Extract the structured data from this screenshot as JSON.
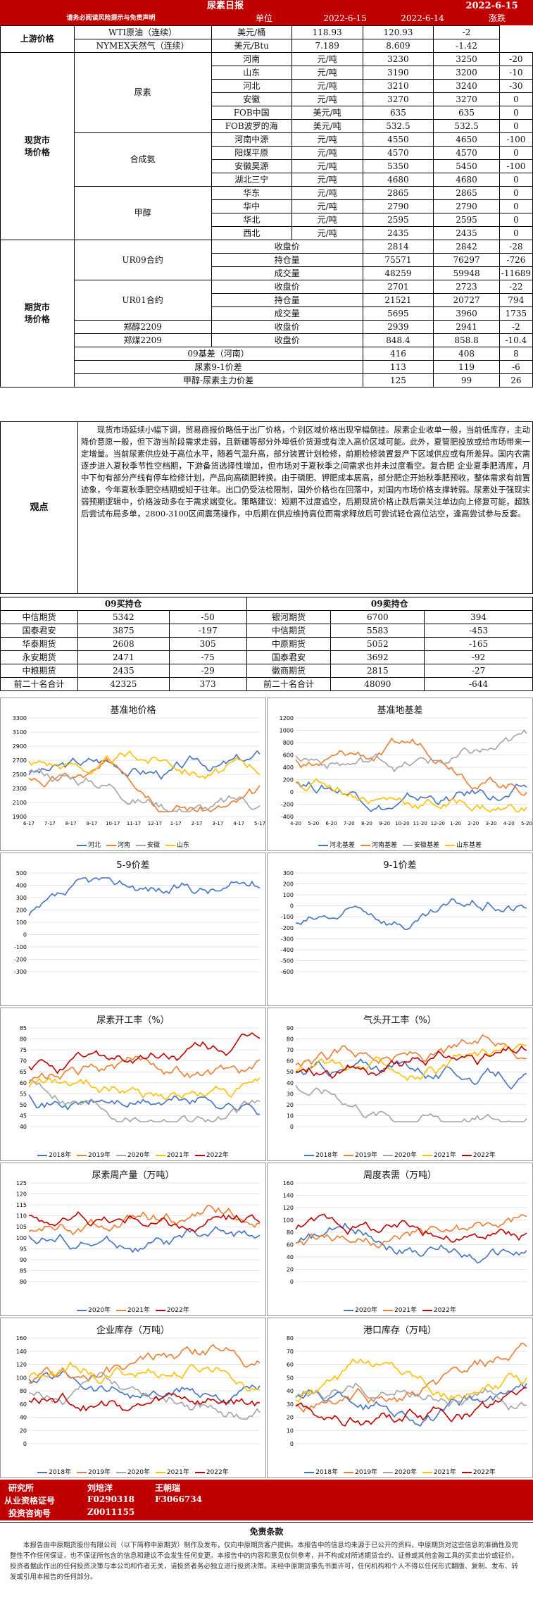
{
  "header": {
    "title": "尿素日报",
    "date": "2022-6-15",
    "subtitle": "请务必阅读风险提示与免责声明",
    "col_unit": "单位",
    "col_d1": "2022-6-15",
    "col_d2": "2022-6-14",
    "col_chg": "涨跌"
  },
  "upstream": {
    "label": "上游价格",
    "rows": [
      {
        "name": "WTI原油（连续）",
        "unit": "美元/桶",
        "v1": "118.93",
        "v2": "120.93",
        "chg": "-2"
      },
      {
        "name": "NYMEX天然气（连续）",
        "unit": "美元/Btu",
        "v1": "7.189",
        "v2": "8.609",
        "chg": "-1.42"
      }
    ]
  },
  "spot": {
    "label": "现货市场价格",
    "groups": [
      {
        "name": "尿素",
        "rows": [
          {
            "name": "河南",
            "unit": "元/吨",
            "v1": "3230",
            "v2": "3250",
            "chg": "-20"
          },
          {
            "name": "山东",
            "unit": "元/吨",
            "v1": "3190",
            "v2": "3200",
            "chg": "-10"
          },
          {
            "name": "河北",
            "unit": "元/吨",
            "v1": "3210",
            "v2": "3240",
            "chg": "-30"
          },
          {
            "name": "安徽",
            "unit": "元/吨",
            "v1": "3270",
            "v2": "3270",
            "chg": "0"
          },
          {
            "name": "FOB中国",
            "unit": "美元/吨",
            "v1": "635",
            "v2": "635",
            "chg": "0"
          },
          {
            "name": "FOB波罗的海",
            "unit": "美元/吨",
            "v1": "532.5",
            "v2": "532.5",
            "chg": "0"
          }
        ]
      },
      {
        "name": "合成氨",
        "rows": [
          {
            "name": "河南中源",
            "unit": "元/吨",
            "v1": "4550",
            "v2": "4650",
            "chg": "-100"
          },
          {
            "name": "阳煤平原",
            "unit": "元/吨",
            "v1": "4570",
            "v2": "4570",
            "chg": "0"
          },
          {
            "name": "安徽昊源",
            "unit": "元/吨",
            "v1": "5350",
            "v2": "5450",
            "chg": "-100"
          },
          {
            "name": "湖北三宁",
            "unit": "元/吨",
            "v1": "4680",
            "v2": "4680",
            "chg": "0"
          }
        ]
      },
      {
        "name": "甲醇",
        "rows": [
          {
            "name": "华东",
            "unit": "元/吨",
            "v1": "2865",
            "v2": "2865",
            "chg": "0"
          },
          {
            "name": "华中",
            "unit": "元/吨",
            "v1": "2790",
            "v2": "2790",
            "chg": "0"
          },
          {
            "name": "华北",
            "unit": "元/吨",
            "v1": "2595",
            "v2": "2595",
            "chg": "0"
          },
          {
            "name": "西北",
            "unit": "元/吨",
            "v1": "2435",
            "v2": "2435",
            "chg": "0"
          }
        ]
      }
    ]
  },
  "futures": {
    "label": "期货市场价格",
    "groups": [
      {
        "name": "UR09合约",
        "rows": [
          {
            "name": "收盘价",
            "v1": "2814",
            "v2": "2842",
            "chg": "-28"
          },
          {
            "name": "持仓量",
            "v1": "75571",
            "v2": "76297",
            "chg": "-726"
          },
          {
            "name": "成交量",
            "v1": "48259",
            "v2": "59948",
            "chg": "-11689"
          }
        ]
      },
      {
        "name": "UR01合约",
        "rows": [
          {
            "name": "收盘价",
            "v1": "2701",
            "v2": "2723",
            "chg": "-22"
          },
          {
            "name": "持仓量",
            "v1": "21521",
            "v2": "20727",
            "chg": "794"
          },
          {
            "name": "成交量",
            "v1": "5695",
            "v2": "3960",
            "chg": "1735"
          }
        ]
      },
      {
        "name": "郑醇2209",
        "rows": [
          {
            "name": "收盘价",
            "v1": "2939",
            "v2": "2941",
            "chg": "-2"
          }
        ]
      },
      {
        "name": "郑煤2209",
        "rows": [
          {
            "name": "收盘价",
            "v1": "848.4",
            "v2": "858.8",
            "chg": "-10.4"
          }
        ]
      }
    ],
    "spreads": [
      {
        "name": "09基差（河南）",
        "v1": "416",
        "v2": "408",
        "chg": "8"
      },
      {
        "name": "尿素9-1价差",
        "v1": "113",
        "v2": "119",
        "chg": "-6"
      },
      {
        "name": "甲醇-尿素主力价差",
        "v1": "125",
        "v2": "99",
        "chg": "26"
      }
    ]
  },
  "view": {
    "label": "观点",
    "text": "现货市场延续小幅下调，贸易商报价略低于出厂价格，个别区域价格出现窄幅倒挂。尿素企业收单一般，当前低库存，主动降价意愿一般，但下游当阶段需求走弱，且新疆等部分外埠低价货源或有流入高价区域可能。此外，夏管肥投放或给市场带来一定增量。当前尿素供应处于高位水平，随着气温升高，部分装置计划检修，前期检修装置复产下区域供应或有所差异。国内农需逐步进入夏秋季节性空档期，下游备货选择性增加，但市场对于夏秋季之间需求也并未过度看空。复合肥 企业夏季肥清库，月中下旬有部分产线有停车检修计划，产品向高磷肥转换。由于磷肥、钾肥成本居高，部分肥企开始秋季肥预收，整体需求有前置迹象，今年夏秋季肥空档期或短于往年。出口仍受法检限制，国外价格也在回落中，对国内市场价格支撑转弱。尿素处于强现实弱预期逻辑中，价格波动多在于需求端变化。策略建议：短期不过度追空，后期现货价格止跌后需关注单边向上修复可能，超跌后尝试布局多单，2800-3100区间震荡操作，中后期在供应维持高位而需求释放后可尝试轻仓高位沽空，逢高尝试参与反套。"
  },
  "positions": {
    "buy_title": "09买持仓",
    "sell_title": "09卖持仓",
    "buy": [
      {
        "name": "中信期货",
        "v": "5342",
        "chg": "-50"
      },
      {
        "name": "国泰君安",
        "v": "3875",
        "chg": "-197"
      },
      {
        "name": "华泰期货",
        "v": "2608",
        "chg": "305"
      },
      {
        "name": "永安期货",
        "v": "2471",
        "chg": "-75"
      },
      {
        "name": "中粮期货",
        "v": "2435",
        "chg": "-29"
      },
      {
        "name": "前二十名合计",
        "v": "42325",
        "chg": "373"
      }
    ],
    "sell": [
      {
        "name": "银河期货",
        "v": "6700",
        "chg": "394"
      },
      {
        "name": "中信期货",
        "v": "5583",
        "chg": "-453"
      },
      {
        "name": "中原期货",
        "v": "5052",
        "chg": "-165"
      },
      {
        "name": "国泰君安",
        "v": "3692",
        "chg": "-92"
      },
      {
        "name": "徽商期货",
        "v": "2815",
        "chg": "-27"
      },
      {
        "name": "前二十名合计",
        "v": "48090",
        "chg": "-644"
      }
    ]
  },
  "chart_data": [
    {
      "type": "line",
      "title": "基准地价格",
      "yticks": [
        "3300",
        "3100",
        "2900",
        "2700",
        "2500",
        "2300",
        "2100",
        "1900"
      ],
      "xticks": [
        "6-17",
        "7-17",
        "8-17",
        "9-17",
        "10-17",
        "11-17",
        "12-17",
        "1-17",
        "2-17",
        "3-17",
        "4-17",
        "5-17"
      ],
      "series": [
        {
          "name": "河北",
          "color": "#4472c4"
        },
        {
          "name": "河南",
          "color": "#ed7d31"
        },
        {
          "name": "安徽",
          "color": "#a5a5a5"
        },
        {
          "name": "山东",
          "color": "#ffc000"
        }
      ]
    },
    {
      "type": "line",
      "title": "基准地基差",
      "yticks": [
        "1200",
        "1000",
        "800",
        "600",
        "400",
        "200",
        "0",
        "-200",
        "-400"
      ],
      "xticks": [
        "4-20",
        "5-20",
        "6-20",
        "7-20",
        "8-20",
        "9-20",
        "10-20",
        "11-20",
        "12-20",
        "1-20",
        "2-20",
        "3-20",
        "4-20",
        "5-20"
      ],
      "series": [
        {
          "name": "河北基差",
          "color": "#4472c4"
        },
        {
          "name": "河南基差",
          "color": "#ed7d31"
        },
        {
          "name": "安徽基差",
          "color": "#a5a5a5"
        },
        {
          "name": "山东基差",
          "color": "#ffc000"
        }
      ]
    },
    {
      "type": "line",
      "title": "5-9价差",
      "yticks": [
        "500",
        "400",
        "300",
        "200",
        "100",
        "0",
        "-100",
        "-200",
        "-300"
      ],
      "series": [
        {
          "name": "",
          "color": "#4472c4"
        }
      ]
    },
    {
      "type": "line",
      "title": "9-1价差",
      "yticks": [
        "300",
        "200",
        "100",
        "0",
        "-100",
        "-200",
        "-300",
        "-400",
        "-500",
        "-600"
      ],
      "series": [
        {
          "name": "",
          "color": "#4472c4"
        }
      ]
    },
    {
      "type": "line",
      "title": "尿素开工率（%）",
      "yticks": [
        "85",
        "80",
        "75",
        "70",
        "65",
        "60",
        "55",
        "50",
        "45",
        "40"
      ],
      "series": [
        {
          "name": "2018年",
          "color": "#4472c4"
        },
        {
          "name": "2019年",
          "color": "#ed7d31"
        },
        {
          "name": "2020年",
          "color": "#a5a5a5"
        },
        {
          "name": "2021年",
          "color": "#ffc000"
        },
        {
          "name": "2022年",
          "color": "#c00000"
        }
      ]
    },
    {
      "type": "line",
      "title": "气头开工率（%）",
      "yticks": [
        "90",
        "80",
        "70",
        "60",
        "50",
        "40",
        "30",
        "20",
        "10",
        "0"
      ],
      "series": [
        {
          "name": "2018年",
          "color": "#4472c4"
        },
        {
          "name": "2019年",
          "color": "#ed7d31"
        },
        {
          "name": "2020年",
          "color": "#a5a5a5"
        },
        {
          "name": "2021年",
          "color": "#ffc000"
        },
        {
          "name": "2022年",
          "color": "#c00000"
        }
      ]
    },
    {
      "type": "line",
      "title": "尿素周产量（万吨）",
      "yticks": [
        "125",
        "120",
        "115",
        "110",
        "105",
        "100",
        "95",
        "90",
        "85",
        "80"
      ],
      "series": [
        {
          "name": "2020年",
          "color": "#4472c4"
        },
        {
          "name": "2021年",
          "color": "#ed7d31"
        },
        {
          "name": "2022年",
          "color": "#c00000"
        }
      ]
    },
    {
      "type": "line",
      "title": "周度表需（万吨）",
      "yticks": [
        "160",
        "140",
        "120",
        "100",
        "80",
        "60",
        "40",
        "20",
        "0"
      ],
      "series": [
        {
          "name": "2020年",
          "color": "#4472c4"
        },
        {
          "name": "2021年",
          "color": "#ed7d31"
        },
        {
          "name": "2022年",
          "color": "#c00000"
        }
      ]
    },
    {
      "type": "line",
      "title": "企业库存（万吨）",
      "yticks": [
        "160",
        "140",
        "120",
        "100",
        "80",
        "60",
        "40",
        "20",
        "0"
      ],
      "series": [
        {
          "name": "2018年",
          "color": "#4472c4"
        },
        {
          "name": "2019年",
          "color": "#ed7d31"
        },
        {
          "name": "2020年",
          "color": "#a5a5a5"
        },
        {
          "name": "2021年",
          "color": "#ffc000"
        },
        {
          "name": "2022年",
          "color": "#c00000"
        }
      ]
    },
    {
      "type": "line",
      "title": "港口库存（万吨）",
      "yticks": [
        "80",
        "70",
        "60",
        "50",
        "40",
        "30",
        "20",
        "10",
        "0"
      ],
      "series": [
        {
          "name": "2018年",
          "color": "#4472c4"
        },
        {
          "name": "2019年",
          "color": "#ed7d31"
        },
        {
          "name": "2020年",
          "color": "#a5a5a5"
        },
        {
          "name": "2021年",
          "color": "#ffc000"
        },
        {
          "name": "2022年",
          "color": "#c00000"
        }
      ]
    }
  ],
  "footer": {
    "researcher_label": "研究所",
    "researcher1": "刘培洋",
    "researcher2": "王朝瑞",
    "cert_label": "从业资格证号",
    "cert1": "F0290318",
    "cert2": "F3066734",
    "advisory_label": "投资咨询号",
    "advisory1": "Z0011155",
    "disclaimer_title": "免责条款",
    "disclaimer": "本报告由中原期货股份有限公司（以下简称中原期货）制作及发布，仅向中原期货客户提供。本报告中的信息均来源于已公开的资料，中原期货对这些信息的准确性及完整性不作任何保证，也不保证所包含的信息和建议不会发生任何变更。本报告中的内容和意见仅供参考，并不构成对所述期货合约、证券或其他金融工具的买卖出价或征价。投资者据此作出的任何投资决策与本公司和作者无关，请投资者务必独立进行投资决策。未经中原期货事先书面许可，任何机构和个人不得以任何形式翻版、复制、发布、转发或引用本报告的任何部分。"
  }
}
